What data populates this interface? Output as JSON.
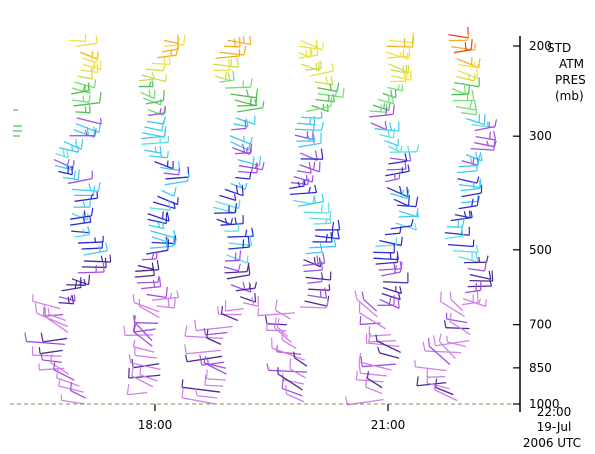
{
  "chart_data": {
    "type": "wind-profile",
    "y_axis": {
      "label_lines": [
        "STD",
        "ATM",
        "PRES",
        "(mb)"
      ],
      "ticks": [
        200,
        300,
        500,
        700,
        850,
        1000
      ],
      "scale": "log",
      "range": [
        1000,
        190
      ]
    },
    "x_axis": {
      "tick_labels": [
        "18:00",
        "21:00"
      ],
      "end_label_lines": [
        "22:00",
        "19-Jul",
        "2006 UTC"
      ]
    },
    "reference_line": {
      "pressure": 1000,
      "style": "dashed",
      "color": "#8b8b4a"
    },
    "color_scale": [
      "#a050e0",
      "#d080e8",
      "#4a2a9a",
      "#2a2ad0",
      "#40c8f0",
      "#58e0e0",
      "#70e070",
      "#50c050",
      "#c8e040",
      "#f0e040",
      "#f0b020",
      "#f04020"
    ],
    "profiles": [
      {
        "p_top": 195,
        "p_bottom": 1000
      },
      {
        "p_top": 195,
        "p_bottom": 950
      },
      {
        "p_top": 195,
        "p_bottom": 1000
      },
      {
        "p_top": 195,
        "p_bottom": 990
      },
      {
        "p_top": 195,
        "p_bottom": 980
      },
      {
        "p_top": 190,
        "p_bottom": 985
      }
    ]
  }
}
